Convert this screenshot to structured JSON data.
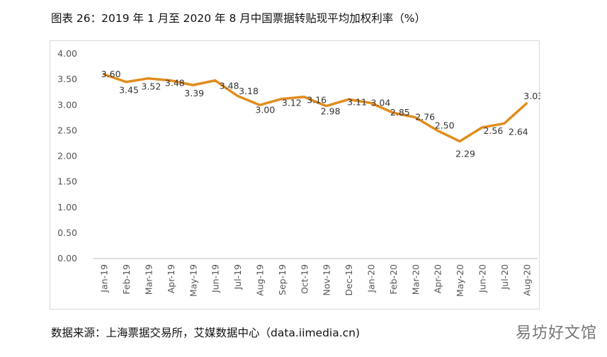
{
  "chart_data": {
    "type": "line",
    "title": "图表 26：2019 年 1 月至 2020 年 8 月中国票据转贴现平均加权利率（%）",
    "xlabel": "",
    "ylabel": "",
    "categories": [
      "Jan-19",
      "Feb-19",
      "Mar-19",
      "Apr-19",
      "May-19",
      "Jun-19",
      "Jul-19",
      "Aug-19",
      "Sep-19",
      "Oct-19",
      "Nov-19",
      "Dec-19",
      "Jan-20",
      "Feb-20",
      "Mar-20",
      "Apr-20",
      "May-20",
      "Jun-20",
      "Jul-20",
      "Aug-20"
    ],
    "series": [
      {
        "values": [
          3.6,
          3.45,
          3.52,
          3.48,
          3.39,
          3.48,
          3.18,
          3.0,
          3.12,
          3.16,
          2.98,
          3.11,
          3.04,
          2.85,
          2.76,
          2.5,
          2.29,
          2.56,
          2.64,
          3.03
        ]
      }
    ],
    "value_labels": [
      "3.60",
      "3.45",
      "3.52",
      "3.48",
      "3.39",
      "3.48",
      "3.18",
      "3.00",
      "3.12",
      "3.16",
      "2.98",
      "3.11",
      "3.04",
      "2.85",
      "2.76",
      "2.50",
      "2.29",
      "2.56",
      "2.64",
      "3.03"
    ],
    "ylim": [
      0,
      4
    ],
    "yticks": [
      "0.00",
      "0.50",
      "1.00",
      "1.50",
      "2.00",
      "2.50",
      "3.00",
      "3.50",
      "4.00"
    ],
    "grid": false,
    "legend": "none",
    "line_color": "#E28C1E"
  },
  "source": "数据来源：上海票据交易所，艾媒数据中心（data.iimedia.cn)",
  "watermark": "易坊好文馆"
}
